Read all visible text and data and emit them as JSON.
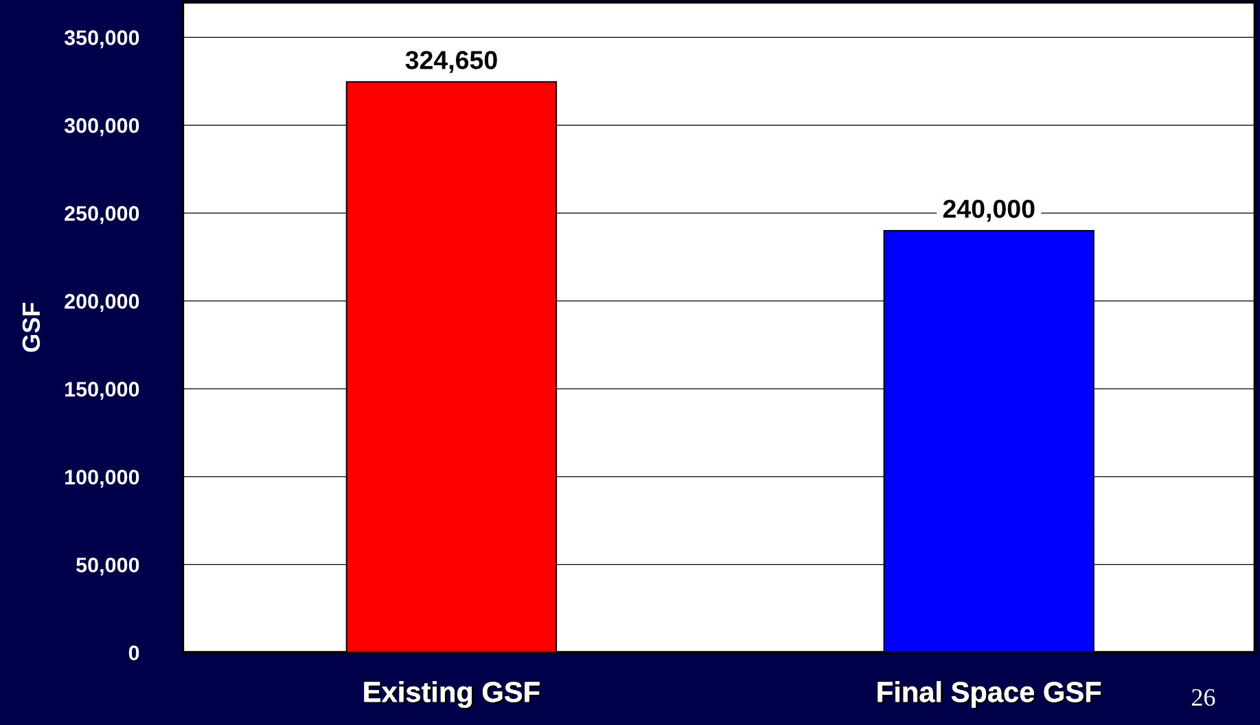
{
  "chart_data": {
    "type": "bar",
    "ylabel": "GSF",
    "categories": [
      "Existing GSF",
      "Final Space GSF"
    ],
    "values": [
      324650,
      240000
    ],
    "colors": [
      "#ff0000",
      "#0000ff"
    ],
    "value_labels": [
      "324,650",
      "240,000"
    ],
    "ylim": [
      0,
      370000
    ],
    "yticks": [
      {
        "value": 0,
        "label": "0"
      },
      {
        "value": 50000,
        "label": "50,000"
      },
      {
        "value": 100000,
        "label": "100,000"
      },
      {
        "value": 150000,
        "label": "150,000"
      },
      {
        "value": 200000,
        "label": "200,000"
      },
      {
        "value": 250000,
        "label": "250,000"
      },
      {
        "value": 300000,
        "label": "300,000"
      },
      {
        "value": 350000,
        "label": "350,000"
      }
    ],
    "grid": "y",
    "legend": false,
    "annotations": [
      "26"
    ]
  }
}
